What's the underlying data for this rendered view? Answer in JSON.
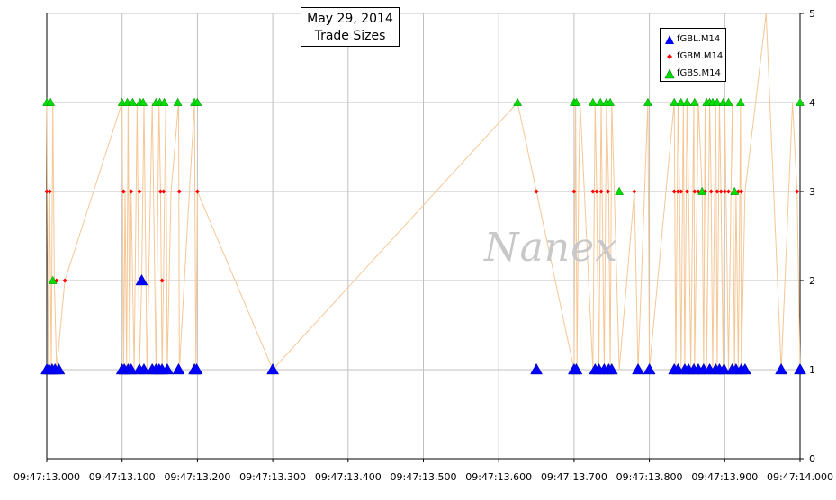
{
  "chart_data": {
    "type": "scatter",
    "title": "May 29, 2014",
    "subtitle": "Trade Sizes",
    "watermark": "Nanex",
    "x_tick_labels": [
      "09:47:13.000",
      "09:47:13.100",
      "09:47:13.200",
      "09:47:13.300",
      "09:47:13.400",
      "09:47:13.500",
      "09:47:13.600",
      "09:47:13.700",
      "09:47:13.800",
      "09:47:13.900",
      "09:47:14.000"
    ],
    "y_tick_labels": [
      "0",
      "1",
      "2",
      "3",
      "4",
      "5"
    ],
    "xlim": [
      0,
      1000
    ],
    "ylim": [
      0,
      5
    ],
    "grid": true,
    "legend_position": "top-right",
    "line_color": "#f5c796",
    "series": [
      {
        "name": "fGBL.M14",
        "color": "#0000ff",
        "marker": "triangle",
        "x": [
          0,
          3,
          7,
          11,
          16,
          100,
          103,
          108,
          112,
          123,
          126,
          129,
          140,
          145,
          149,
          153,
          160,
          175,
          196,
          199,
          300,
          650,
          700,
          703,
          728,
          733,
          740,
          746,
          750,
          785,
          800,
          833,
          838,
          847,
          852,
          859,
          865,
          872,
          880,
          888,
          893,
          899,
          910,
          915,
          922,
          927,
          975,
          1000
        ],
        "y": [
          1,
          1,
          1,
          1,
          1,
          1,
          1,
          1,
          1,
          1,
          2,
          1,
          1,
          1,
          1,
          1,
          1,
          1,
          1,
          1,
          1,
          1,
          1,
          1,
          1,
          1,
          1,
          1,
          1,
          1,
          1,
          1,
          1,
          1,
          1,
          1,
          1,
          1,
          1,
          1,
          1,
          1,
          1,
          1,
          1,
          1,
          1,
          1
        ]
      },
      {
        "name": "fGBM.M14",
        "color": "#ff0000",
        "marker": "diamond",
        "x": [
          0,
          4,
          9,
          13,
          24,
          102,
          112,
          123,
          151,
          153,
          155,
          176,
          200,
          650,
          700,
          725,
          730,
          736,
          745,
          780,
          833,
          838,
          842,
          850,
          860,
          865,
          874,
          882,
          890,
          895,
          900,
          905,
          912,
          918,
          922,
          996
        ],
        "y": [
          3,
          3,
          2,
          2,
          2,
          3,
          3,
          3,
          3,
          2,
          3,
          3,
          3,
          3,
          3,
          3,
          3,
          3,
          3,
          3,
          3,
          3,
          3,
          3,
          3,
          3,
          3,
          3,
          3,
          3,
          3,
          3,
          3,
          3,
          3,
          3
        ]
      },
      {
        "name": "fGBS.M14",
        "color": "#00dd00",
        "marker": "triangle",
        "x": [
          0,
          5,
          8,
          100,
          107,
          114,
          124,
          128,
          145,
          150,
          156,
          174,
          196,
          200,
          625,
          700,
          703,
          725,
          735,
          743,
          748,
          760,
          798,
          833,
          842,
          850,
          860,
          870,
          876,
          880,
          884,
          890,
          898,
          905,
          913,
          921,
          1000
        ],
        "y": [
          4,
          4,
          2,
          4,
          4,
          4,
          4,
          4,
          4,
          4,
          4,
          4,
          4,
          4,
          4,
          4,
          4,
          4,
          4,
          4,
          4,
          3,
          4,
          4,
          4,
          4,
          4,
          3,
          4,
          4,
          4,
          4,
          4,
          4,
          3,
          4,
          4
        ]
      }
    ],
    "line_x": [
      0,
      2,
      4,
      6,
      8,
      10,
      13,
      24,
      100,
      102,
      104,
      106,
      108,
      110,
      112,
      116,
      120,
      123,
      126,
      129,
      133,
      140,
      145,
      149,
      151,
      153,
      155,
      158,
      160,
      165,
      175,
      176,
      196,
      198,
      200,
      300,
      625,
      650,
      700,
      702,
      704,
      706,
      708,
      725,
      728,
      730,
      733,
      736,
      740,
      743,
      746,
      748,
      750,
      760,
      780,
      785,
      798,
      800,
      833,
      835,
      838,
      840,
      842,
      845,
      847,
      850,
      852,
      855,
      859,
      860,
      865,
      870,
      872,
      874,
      876,
      880,
      882,
      884,
      888,
      890,
      893,
      895,
      898,
      900,
      905,
      910,
      913,
      915,
      918,
      921,
      922,
      927,
      955,
      975,
      990,
      996,
      1000
    ],
    "line_y": [
      4,
      1,
      3,
      1,
      4,
      2,
      1,
      2,
      4,
      1,
      3,
      1,
      4,
      1,
      3,
      1,
      4,
      1,
      2,
      4,
      1,
      4,
      1,
      4,
      3,
      1,
      2,
      4,
      1,
      3,
      4,
      1,
      4,
      1,
      3,
      1,
      4,
      3,
      1,
      4,
      1,
      3,
      4,
      1,
      4,
      3,
      1,
      4,
      1,
      4,
      3,
      1,
      4,
      1,
      3,
      1,
      4,
      1,
      4,
      1,
      4,
      3,
      1,
      4,
      1,
      4,
      3,
      1,
      4,
      1,
      4,
      3,
      1,
      4,
      1,
      4,
      3,
      1,
      4,
      1,
      4,
      3,
      1,
      4,
      1,
      4,
      1,
      3,
      1,
      4,
      1,
      3,
      5,
      1,
      4,
      3,
      1
    ]
  }
}
